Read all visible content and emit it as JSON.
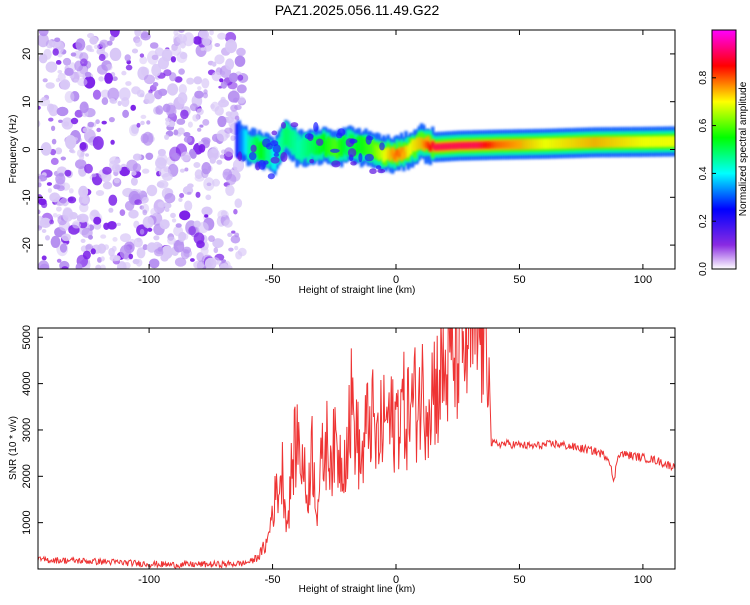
{
  "title": "PAZ1.2025.056.11.49.G22",
  "chart_data": [
    {
      "type": "heatmap",
      "xlabel": "Height of straight line (km)",
      "ylabel": "Frequency (Hz)",
      "xlim": [
        -145,
        113
      ],
      "ylim": [
        -25,
        25
      ],
      "xticks": [
        -100,
        -50,
        0,
        50,
        100
      ],
      "yticks": [
        -20,
        -10,
        0,
        10,
        20
      ],
      "colorbar": {
        "label": "Normalized spectral amplitude",
        "ticks": [
          0.0,
          0.2,
          0.4,
          0.6,
          0.8
        ],
        "range": [
          0.0,
          1.0
        ],
        "colormap": [
          "#ffffff",
          "#8a2be2",
          "#0000ff",
          "#00ffff",
          "#00ff00",
          "#ffff00",
          "#ff0000",
          "#ff00ff"
        ]
      },
      "ridge": {
        "x": [
          -65,
          -60,
          -55,
          -50,
          -45,
          -40,
          -35,
          -30,
          -25,
          -20,
          -15,
          -10,
          -5,
          0,
          5,
          10,
          15,
          25,
          40,
          60,
          80,
          100,
          113
        ],
        "y": [
          2.5,
          0.5,
          0.0,
          -1.5,
          3.0,
          0.0,
          0.5,
          1.0,
          0.0,
          1.0,
          0.5,
          0.0,
          -1.0,
          -1.0,
          0.0,
          1.5,
          0.5,
          0.8,
          1.0,
          1.2,
          1.5,
          1.6,
          1.7
        ],
        "amplitude": [
          0.25,
          0.45,
          0.55,
          0.4,
          0.5,
          0.45,
          0.5,
          0.55,
          0.6,
          0.5,
          0.55,
          0.6,
          0.7,
          0.8,
          0.7,
          0.75,
          0.9,
          1.0,
          0.8,
          0.7,
          0.75,
          0.7,
          0.7
        ]
      },
      "noise_region": {
        "x": [
          -145,
          -62
        ],
        "y": [
          -25,
          25
        ]
      }
    },
    {
      "type": "line",
      "xlabel": "Height of straight line (km)",
      "ylabel": "SNR (10 * v/v)",
      "xlim": [
        -145,
        113
      ],
      "ylim": [
        0,
        5200
      ],
      "xticks": [
        -100,
        -50,
        0,
        50,
        100
      ],
      "yticks": [
        1000,
        2000,
        3000,
        4000,
        5000
      ],
      "color": "#ee3333",
      "series": [
        {
          "x": [
            -145,
            -130,
            -115,
            -100,
            -90,
            -80,
            -70,
            -62,
            -58,
            -55,
            -52,
            -50,
            -48,
            -46,
            -44,
            -42,
            -40,
            -38,
            -36,
            -34,
            -32,
            -30,
            -28,
            -26,
            -24,
            -22,
            -20,
            -18,
            -16,
            -14,
            -12,
            -10,
            -8,
            -6,
            -4,
            -2,
            0,
            2,
            4,
            6,
            8,
            10,
            12,
            14,
            16,
            18,
            20,
            22,
            24,
            26,
            28,
            30,
            32,
            34,
            36,
            37.5,
            38.5,
            45,
            55,
            65,
            75,
            80,
            85,
            87,
            88,
            90,
            95,
            100,
            105,
            110,
            113
          ],
          "y": [
            200,
            180,
            150,
            110,
            90,
            100,
            100,
            120,
            180,
            320,
            600,
            1300,
            1700,
            2100,
            900,
            2300,
            2800,
            2400,
            1500,
            2600,
            1300,
            2300,
            2700,
            2500,
            2600,
            2300,
            2700,
            3600,
            2900,
            2200,
            3000,
            3400,
            2600,
            3000,
            3300,
            3100,
            3200,
            3600,
            3300,
            3500,
            3600,
            3800,
            3700,
            3900,
            4000,
            4100,
            4300,
            4400,
            4700,
            4900,
            4850,
            5000,
            5050,
            5100,
            5000,
            5100,
            2700,
            2700,
            2650,
            2700,
            2600,
            2550,
            2450,
            2300,
            1800,
            2500,
            2450,
            2400,
            2350,
            2250,
            2200
          ]
        }
      ]
    }
  ]
}
